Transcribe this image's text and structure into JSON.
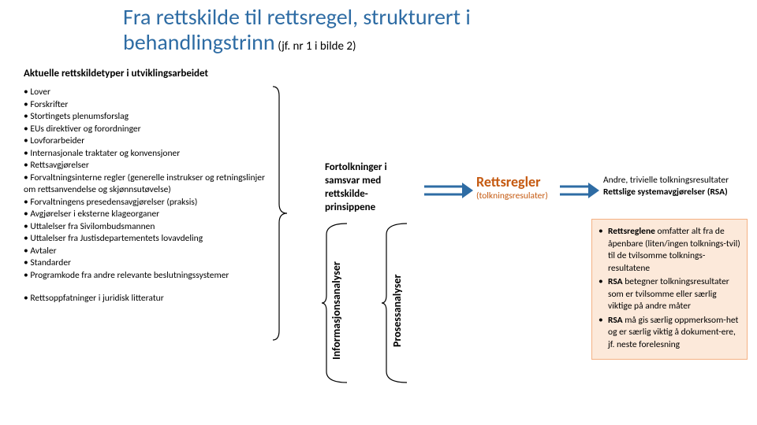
{
  "title": {
    "main": "Fra rettskilde til rettsregel, strukturert i behandlingstrinn",
    "sub": "(jf. nr 1 i bilde 2)",
    "color": "#2e6ca4",
    "fontsize_main": 28,
    "fontsize_sub": 15
  },
  "section_heading": "Aktuelle rettskildetyper i utviklingsarbeidet",
  "left_list": {
    "items": [
      "Lover",
      "Forskrifter",
      "Stortingets plenumsforslag",
      "EUs direktiver og forordninger",
      "Lovforarbeider",
      "Internasjonale traktater og konvensjoner",
      "Rettsavgjørelser",
      "Forvaltningsinterne regler (generelle instrukser og retningslinjer om rettsanvendelse og skjønnsutøvelse)",
      "Forvaltningens presedensavgjørelser (praksis)",
      "Avgjørelser i eksterne klageorganer",
      "Uttalelser fra Sivilombudsmannen",
      "Uttalelser fra Justisdepartementets lovavdeling",
      "Avtaler",
      "Standarder",
      "Programkode fra andre relevante beslutningssystemer"
    ],
    "secondary": "Rettsoppfatninger i juridisk litteratur",
    "fontsize": 11.5,
    "bullet_char": "•"
  },
  "middle": {
    "fortolkninger": "Fortolkninger i samsvar med rettskilde-prinsippene",
    "vertical_label_1": "Informasjonsanalyser",
    "vertical_label_2": "Prosessanalyser",
    "fontsize_vert": 14
  },
  "arrows": {
    "color": "#2e6ca4",
    "stroke_width": 3
  },
  "rettsregler": {
    "title": "Rettsregler",
    "sub": "(tolkningsresulater)",
    "color": "#c55a11",
    "fontsize_title": 18,
    "fontsize_sub": 11.5
  },
  "right_top": {
    "line1": "Andre, trivielle tolkningsresultater",
    "line2": "Rettslige systemavgjørelser (RSA)"
  },
  "right_box": {
    "bg_color": "#fce9da",
    "border_color": "#f4b183",
    "items": [
      "Rettsreglene omfatter alt fra de åpenbare (liten/ingen tolknings-tvil) til de tvilsomme tolknings-resultatene",
      "RSA betegner tolkningsresultater som er tvilsomme eller særlig viktige på andre måter",
      "RSA må gis særlig oppmerksom-het og er særlig viktig å dokument-ere, jf. neste forelesning"
    ],
    "bold_prefixes": [
      "Rettsreglene",
      "RSA",
      "RSA"
    ]
  },
  "bracket": {
    "stroke_color": "#000000",
    "stroke_width": 1.2
  }
}
